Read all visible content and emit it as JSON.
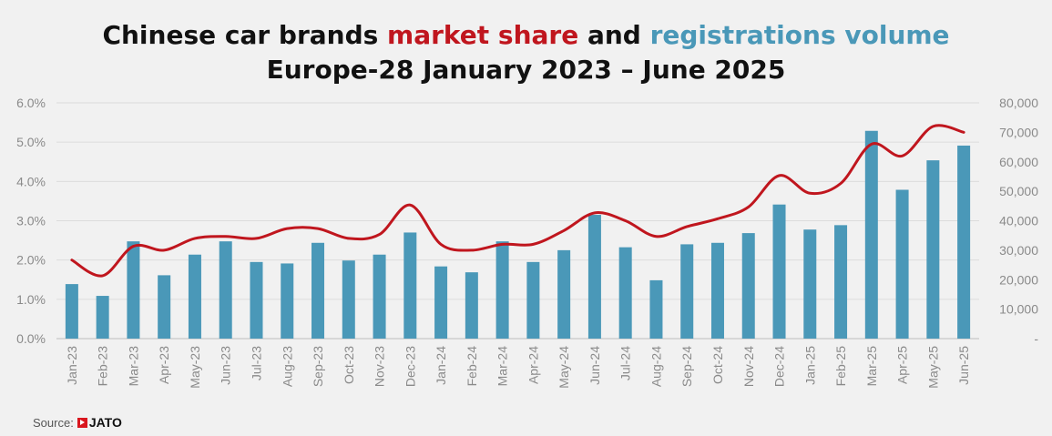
{
  "title": {
    "line1_part1": "Chinese car brands ",
    "line1_share": "market share",
    "line1_part2": " and ",
    "line1_volume": "registrations volume",
    "line2": "Europe-28 January 2023 – June 2025"
  },
  "source": {
    "label": "Source:",
    "brand": "JATO"
  },
  "colors": {
    "bar": "#4a98b8",
    "line": "#c0161e",
    "grid": "#dcdcdc",
    "axis_text": "#8a8a8a"
  },
  "chart_data": {
    "type": "bar",
    "categories": [
      "Jan-23",
      "Feb-23",
      "Mar-23",
      "Apr-23",
      "May-23",
      "Jun-23",
      "Jul-23",
      "Aug-23",
      "Sep-23",
      "Oct-23",
      "Nov-23",
      "Dec-23",
      "Jan-24",
      "Feb-24",
      "Mar-24",
      "Apr-24",
      "May-24",
      "Jun-24",
      "Jul-24",
      "Aug-24",
      "Sep-24",
      "Oct-24",
      "Nov-24",
      "Dec-24",
      "Jan-25",
      "Feb-25",
      "Mar-25",
      "Apr-25",
      "May-25",
      "Jun-25"
    ],
    "series": [
      {
        "type": "bar",
        "axis": "right",
        "values": [
          18500,
          14500,
          33000,
          21500,
          28500,
          33000,
          26000,
          25500,
          32500,
          26500,
          28500,
          36000,
          24500,
          22500,
          33000,
          26000,
          30000,
          42000,
          31000,
          19800,
          32000,
          32500,
          35800,
          45500,
          37000,
          38500,
          70500,
          50500,
          60500,
          65500
        ]
      },
      {
        "type": "line",
        "axis": "left",
        "values": [
          2.0,
          1.6,
          2.35,
          2.25,
          2.55,
          2.6,
          2.55,
          2.8,
          2.8,
          2.55,
          2.65,
          3.4,
          2.4,
          2.25,
          2.4,
          2.4,
          2.75,
          3.2,
          3.0,
          2.6,
          2.85,
          3.05,
          3.35,
          4.15,
          3.7,
          3.95,
          4.95,
          4.65,
          5.4,
          5.25
        ]
      }
    ],
    "y_left": {
      "ticks": [
        "0.0%",
        "1.0%",
        "2.0%",
        "3.0%",
        "4.0%",
        "5.0%",
        "6.0%"
      ],
      "range": [
        0,
        6
      ]
    },
    "y_right": {
      "ticks": [
        "-",
        "10,000",
        "20,000",
        "30,000",
        "40,000",
        "50,000",
        "60,000",
        "70,000",
        "80,000"
      ],
      "range": [
        0,
        80000
      ]
    },
    "grid": true,
    "legend": "none"
  }
}
